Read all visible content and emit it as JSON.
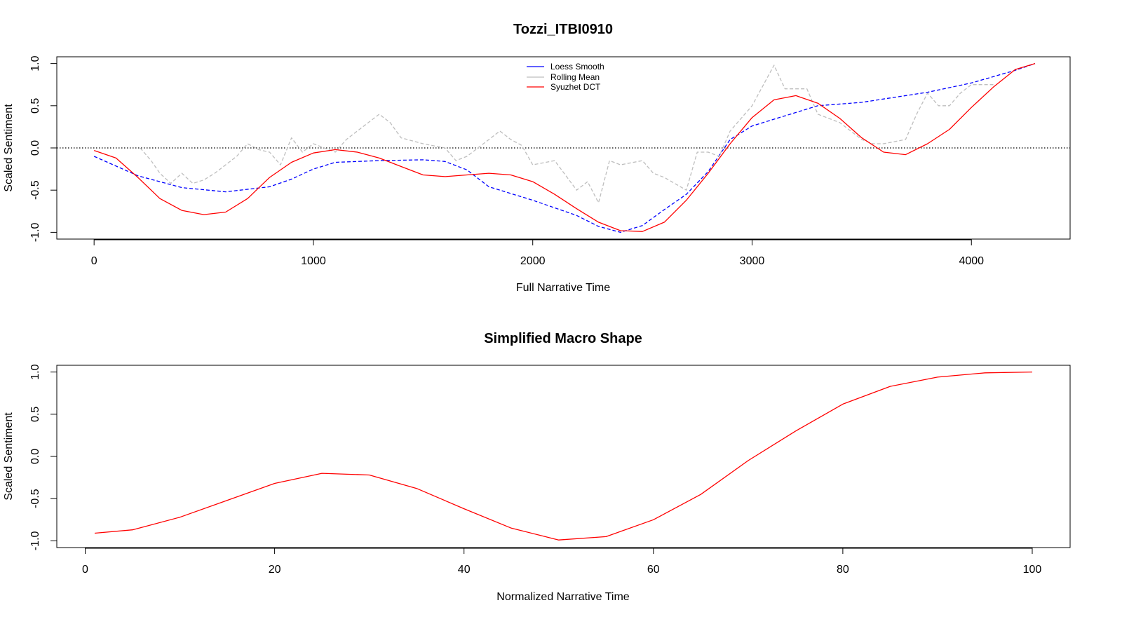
{
  "chart_data": [
    {
      "type": "line",
      "title": "Tozzi_ITBI0910",
      "xlabel": "Full Narrative Time",
      "ylabel": "Scaled Sentiment",
      "xlim": [
        -170,
        4450
      ],
      "ylim": [
        -1.08,
        1.08
      ],
      "xticks": [
        0,
        1000,
        2000,
        3000,
        4000
      ],
      "yticks": [
        -1.0,
        -0.5,
        0.0,
        0.5,
        1.0
      ],
      "ytick_labels": [
        "-1.0",
        "-0.5",
        "0.0",
        "0.5",
        "1.0"
      ],
      "reference_line": 0,
      "legend": {
        "position": "top-center",
        "entries": [
          "Loess Smooth",
          "Rolling Mean",
          "Syuzhet DCT"
        ]
      },
      "series": [
        {
          "name": "Loess Smooth",
          "color": "#0000ff",
          "style": "dashed",
          "points": [
            [
              0,
              -0.1
            ],
            [
              200,
              -0.33
            ],
            [
              400,
              -0.47
            ],
            [
              600,
              -0.52
            ],
            [
              800,
              -0.46
            ],
            [
              900,
              -0.37
            ],
            [
              1000,
              -0.25
            ],
            [
              1100,
              -0.17
            ],
            [
              1300,
              -0.15
            ],
            [
              1500,
              -0.14
            ],
            [
              1600,
              -0.16
            ],
            [
              1700,
              -0.26
            ],
            [
              1800,
              -0.46
            ],
            [
              2000,
              -0.62
            ],
            [
              2200,
              -0.8
            ],
            [
              2300,
              -0.93
            ],
            [
              2400,
              -1.0
            ],
            [
              2500,
              -0.92
            ],
            [
              2600,
              -0.73
            ],
            [
              2700,
              -0.55
            ],
            [
              2800,
              -0.28
            ],
            [
              2900,
              0.1
            ],
            [
              3000,
              0.26
            ],
            [
              3200,
              0.42
            ],
            [
              3300,
              0.5
            ],
            [
              3500,
              0.54
            ],
            [
              3600,
              0.58
            ],
            [
              3800,
              0.66
            ],
            [
              4000,
              0.77
            ],
            [
              4200,
              0.92
            ],
            [
              4290,
              1.0
            ]
          ]
        },
        {
          "name": "Rolling Mean",
          "color": "#bebebe",
          "style": "dashed",
          "points": [
            [
              210,
              0.0
            ],
            [
              260,
              -0.15
            ],
            [
              300,
              -0.3
            ],
            [
              350,
              -0.42
            ],
            [
              400,
              -0.3
            ],
            [
              450,
              -0.42
            ],
            [
              500,
              -0.38
            ],
            [
              550,
              -0.3
            ],
            [
              600,
              -0.2
            ],
            [
              650,
              -0.1
            ],
            [
              700,
              0.05
            ],
            [
              750,
              -0.02
            ],
            [
              800,
              -0.05
            ],
            [
              850,
              -0.2
            ],
            [
              900,
              0.12
            ],
            [
              950,
              -0.05
            ],
            [
              1000,
              0.05
            ],
            [
              1100,
              -0.05
            ],
            [
              1150,
              0.1
            ],
            [
              1200,
              0.2
            ],
            [
              1300,
              0.4
            ],
            [
              1350,
              0.3
            ],
            [
              1400,
              0.12
            ],
            [
              1500,
              0.05
            ],
            [
              1600,
              0.0
            ],
            [
              1650,
              -0.15
            ],
            [
              1700,
              -0.1
            ],
            [
              1800,
              0.1
            ],
            [
              1850,
              0.2
            ],
            [
              1900,
              0.1
            ],
            [
              1950,
              0.03
            ],
            [
              2000,
              -0.2
            ],
            [
              2100,
              -0.15
            ],
            [
              2200,
              -0.5
            ],
            [
              2250,
              -0.4
            ],
            [
              2300,
              -0.65
            ],
            [
              2350,
              -0.15
            ],
            [
              2400,
              -0.2
            ],
            [
              2500,
              -0.15
            ],
            [
              2550,
              -0.3
            ],
            [
              2600,
              -0.35
            ],
            [
              2700,
              -0.5
            ],
            [
              2750,
              -0.05
            ],
            [
              2800,
              -0.05
            ],
            [
              2850,
              -0.1
            ],
            [
              2900,
              0.2
            ],
            [
              3000,
              0.5
            ],
            [
              3100,
              0.98
            ],
            [
              3150,
              0.7
            ],
            [
              3200,
              0.7
            ],
            [
              3250,
              0.7
            ],
            [
              3300,
              0.4
            ],
            [
              3400,
              0.3
            ],
            [
              3500,
              0.1
            ],
            [
              3550,
              0.05
            ],
            [
              3600,
              0.05
            ],
            [
              3700,
              0.1
            ],
            [
              3750,
              0.4
            ],
            [
              3800,
              0.65
            ],
            [
              3850,
              0.5
            ],
            [
              3900,
              0.5
            ],
            [
              3950,
              0.65
            ],
            [
              4000,
              0.75
            ],
            [
              4100,
              0.75
            ]
          ]
        },
        {
          "name": "Syuzhet DCT",
          "color": "#ff0000",
          "style": "solid",
          "points": [
            [
              0,
              -0.03
            ],
            [
              100,
              -0.12
            ],
            [
              200,
              -0.35
            ],
            [
              300,
              -0.6
            ],
            [
              400,
              -0.74
            ],
            [
              500,
              -0.79
            ],
            [
              600,
              -0.76
            ],
            [
              700,
              -0.6
            ],
            [
              800,
              -0.35
            ],
            [
              900,
              -0.17
            ],
            [
              1000,
              -0.06
            ],
            [
              1100,
              -0.02
            ],
            [
              1200,
              -0.05
            ],
            [
              1300,
              -0.12
            ],
            [
              1400,
              -0.22
            ],
            [
              1500,
              -0.32
            ],
            [
              1600,
              -0.34
            ],
            [
              1700,
              -0.32
            ],
            [
              1800,
              -0.3
            ],
            [
              1900,
              -0.32
            ],
            [
              2000,
              -0.4
            ],
            [
              2100,
              -0.55
            ],
            [
              2200,
              -0.72
            ],
            [
              2300,
              -0.88
            ],
            [
              2400,
              -0.98
            ],
            [
              2500,
              -0.99
            ],
            [
              2600,
              -0.88
            ],
            [
              2700,
              -0.62
            ],
            [
              2800,
              -0.3
            ],
            [
              2900,
              0.05
            ],
            [
              3000,
              0.36
            ],
            [
              3100,
              0.57
            ],
            [
              3200,
              0.62
            ],
            [
              3300,
              0.53
            ],
            [
              3400,
              0.35
            ],
            [
              3500,
              0.12
            ],
            [
              3600,
              -0.05
            ],
            [
              3700,
              -0.08
            ],
            [
              3800,
              0.05
            ],
            [
              3900,
              0.22
            ],
            [
              4000,
              0.48
            ],
            [
              4100,
              0.72
            ],
            [
              4200,
              0.93
            ],
            [
              4290,
              1.0
            ]
          ]
        }
      ]
    },
    {
      "type": "line",
      "title": "Simplified Macro Shape",
      "xlabel": "Normalized Narrative Time",
      "ylabel": "Scaled Sentiment",
      "xlim": [
        -3,
        104
      ],
      "ylim": [
        -1.08,
        1.08
      ],
      "xticks": [
        0,
        20,
        40,
        60,
        80,
        100
      ],
      "yticks": [
        -1.0,
        -0.5,
        0.0,
        0.5,
        1.0
      ],
      "ytick_labels": [
        "-1.0",
        "-0.5",
        "0.0",
        "0.5",
        "1.0"
      ],
      "series": [
        {
          "color": "#ff0000",
          "style": "solid",
          "points": [
            [
              1,
              -0.91
            ],
            [
              5,
              -0.87
            ],
            [
              10,
              -0.72
            ],
            [
              15,
              -0.52
            ],
            [
              20,
              -0.32
            ],
            [
              25,
              -0.2
            ],
            [
              30,
              -0.22
            ],
            [
              35,
              -0.38
            ],
            [
              40,
              -0.62
            ],
            [
              45,
              -0.85
            ],
            [
              50,
              -0.99
            ],
            [
              55,
              -0.95
            ],
            [
              60,
              -0.75
            ],
            [
              65,
              -0.45
            ],
            [
              70,
              -0.05
            ],
            [
              75,
              0.3
            ],
            [
              80,
              0.62
            ],
            [
              85,
              0.83
            ],
            [
              90,
              0.94
            ],
            [
              95,
              0.99
            ],
            [
              100,
              1.0
            ]
          ]
        }
      ]
    }
  ]
}
